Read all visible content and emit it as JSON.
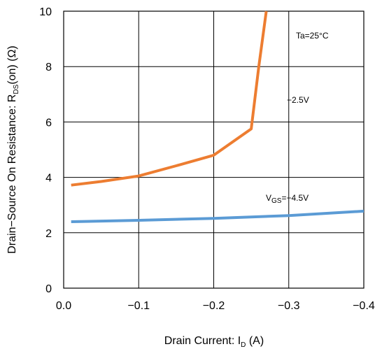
{
  "chart_data": {
    "type": "line",
    "title": "",
    "xlabel": {
      "main": "Drain Current: I",
      "sub": "D",
      "tail": " (A)"
    },
    "ylabel": {
      "main": "Drain−Source On Resistance: R",
      "sub": "DS",
      "tail": "(on) (Ω)"
    },
    "xlim": [
      0,
      -0.4
    ],
    "ylim": [
      0,
      10
    ],
    "x_ticks": [
      0,
      -0.1,
      -0.2,
      -0.3,
      -0.4
    ],
    "x_tick_labels": [
      "0.0",
      "−0.1",
      "−0.2",
      "−0.3",
      "−0.4"
    ],
    "y_ticks": [
      0,
      2,
      4,
      6,
      8,
      10
    ],
    "y_tick_labels": [
      "0",
      "2",
      "4",
      "6",
      "8",
      "10"
    ],
    "grid": true,
    "colors": {
      "vgs_4_5": "#5b9bd5",
      "vgs_2_5": "#ed7d31"
    },
    "annotations": {
      "temp": "Ta=25°C",
      "vgs25": "−2.5V",
      "vgs45_main": "V",
      "vgs45_sub": "GS",
      "vgs45_tail": "=−4.5V"
    },
    "series": [
      {
        "color": "#ed7d31",
        "points": [
          [
            -0.01,
            3.72
          ],
          [
            -0.05,
            3.85
          ],
          [
            -0.1,
            4.05
          ],
          [
            -0.15,
            4.42
          ],
          [
            -0.2,
            4.8
          ],
          [
            -0.25,
            5.75
          ],
          [
            -0.26,
            8.0
          ],
          [
            -0.27,
            10.0
          ]
        ]
      },
      {
        "color": "#5b9bd5",
        "points": [
          [
            -0.01,
            2.4
          ],
          [
            -0.1,
            2.45
          ],
          [
            -0.2,
            2.52
          ],
          [
            -0.3,
            2.62
          ],
          [
            -0.4,
            2.78
          ]
        ]
      }
    ]
  }
}
